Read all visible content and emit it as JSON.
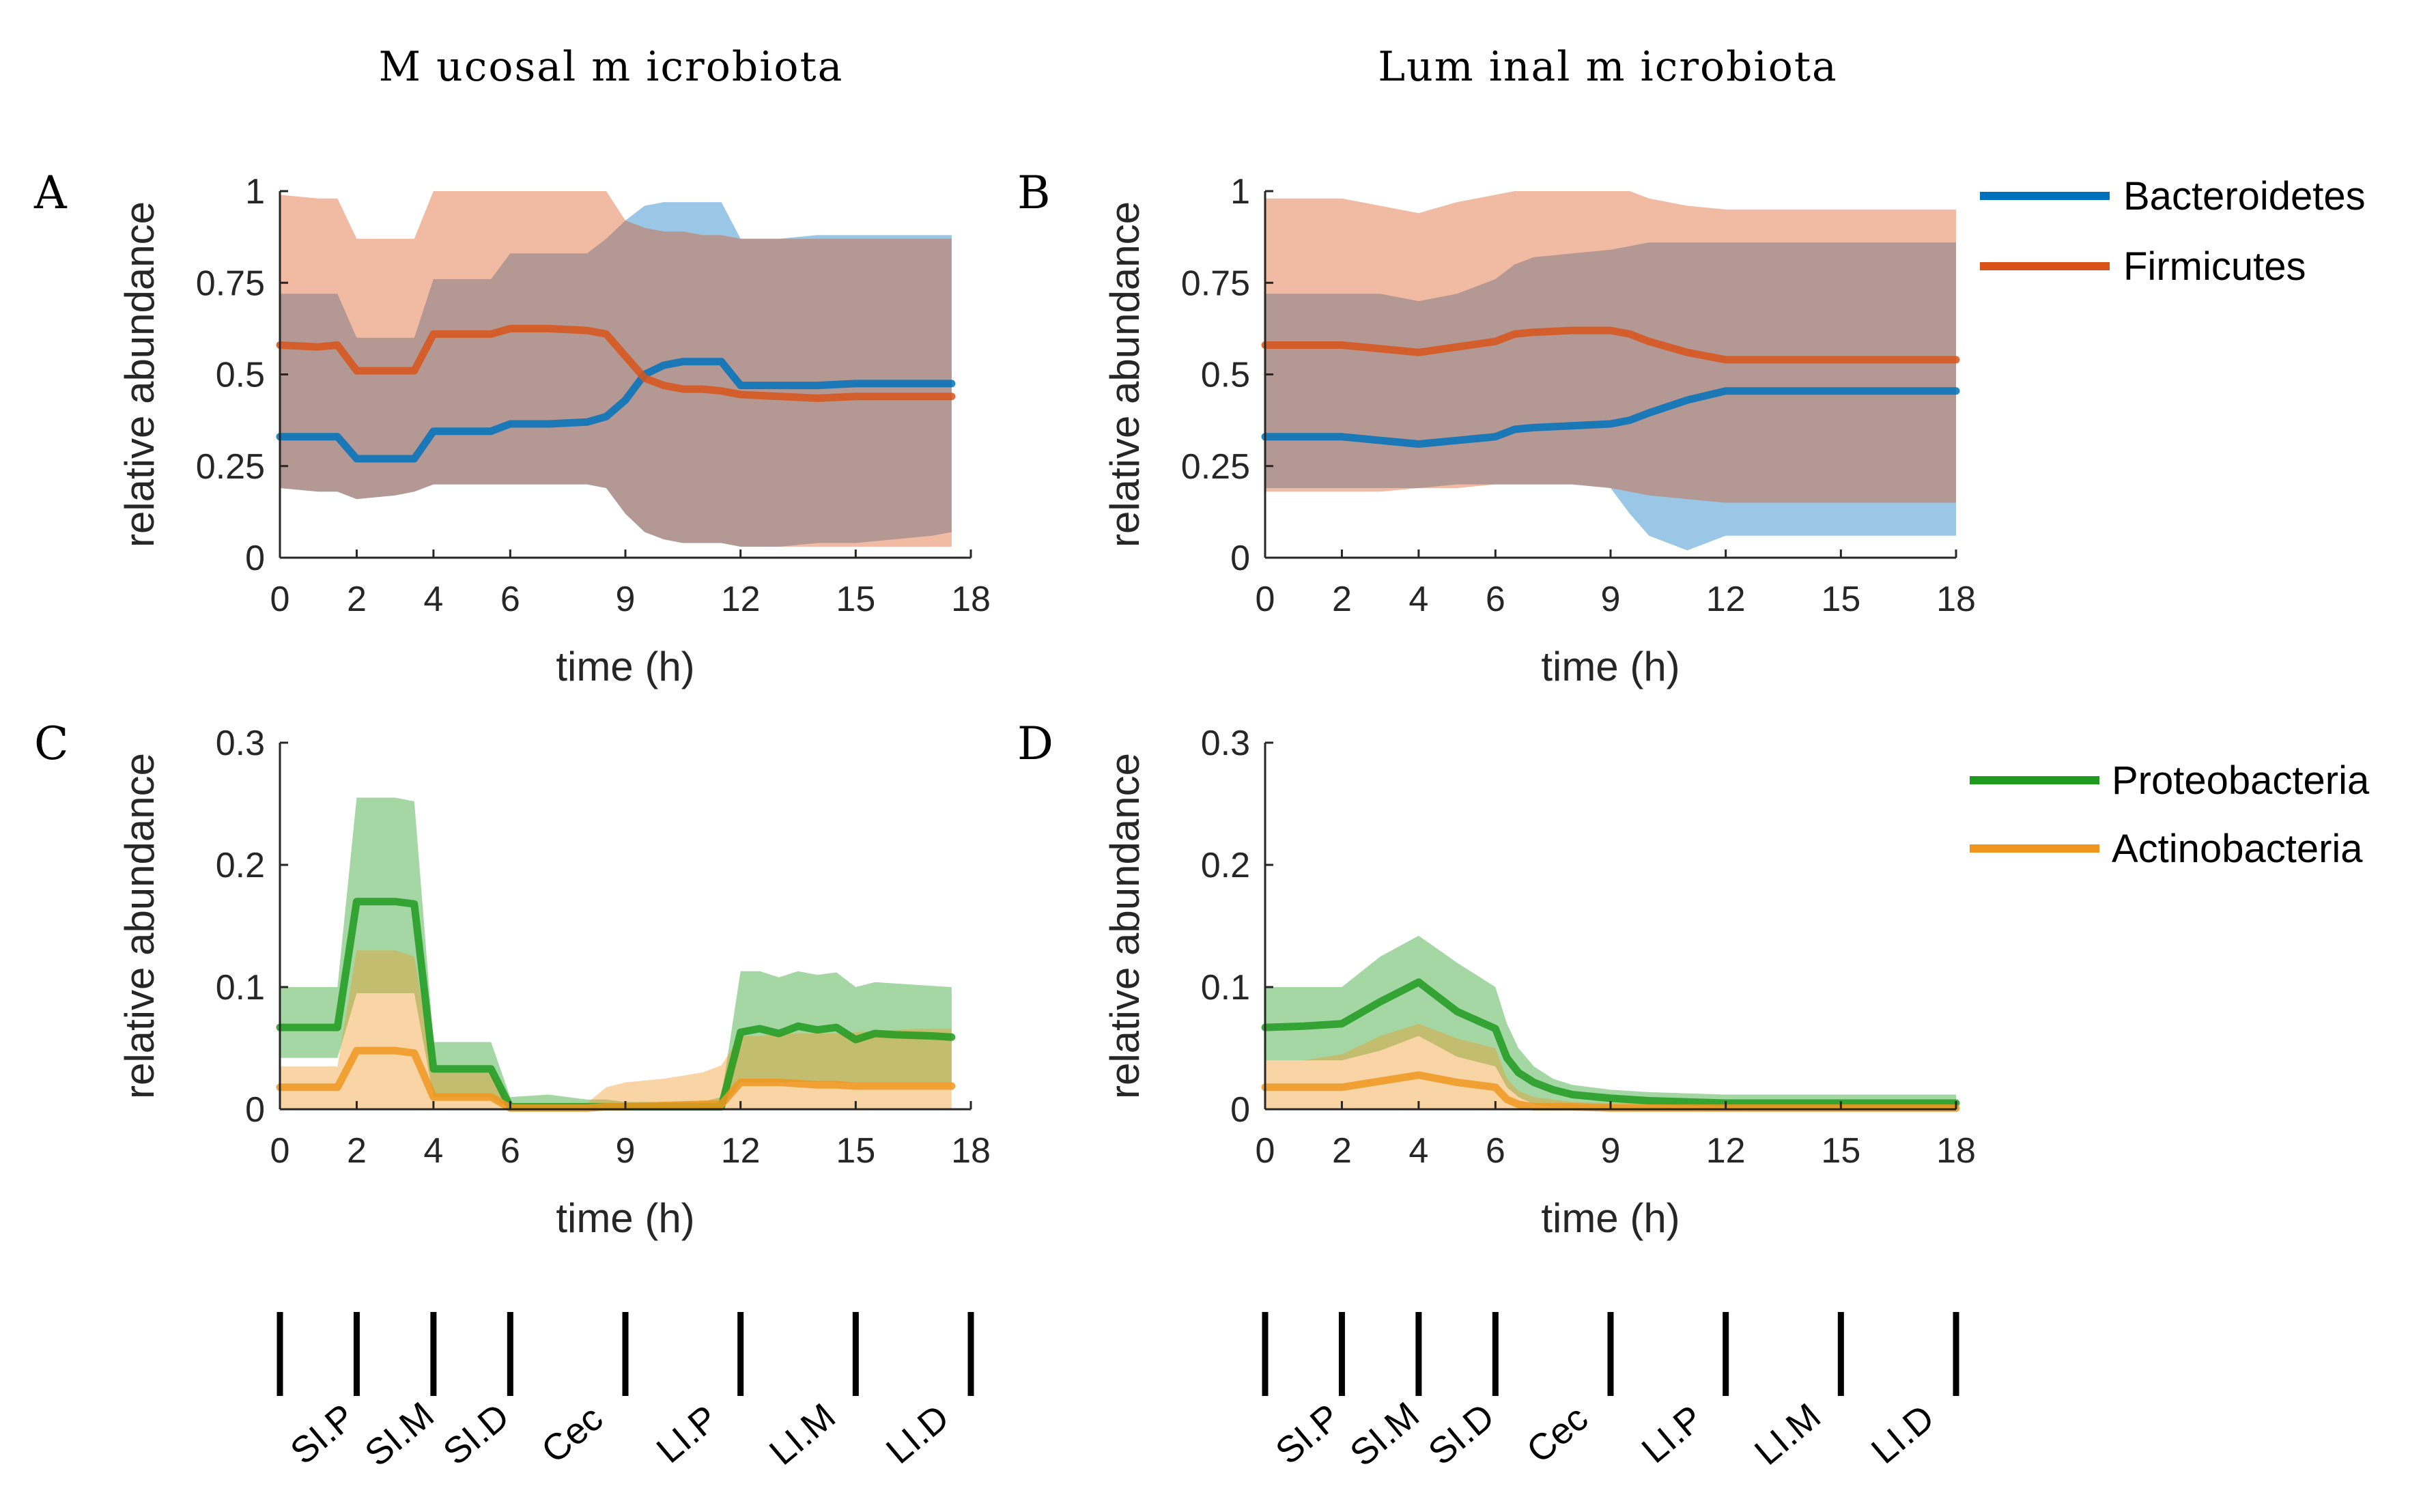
{
  "titles": {
    "mucosal": "M ucosal m icrobiota",
    "luminal": "Lum inal m icrobiota"
  },
  "legend_top": [
    {
      "label": "Bacteroidetes",
      "color": "#0072BD"
    },
    {
      "label": "Firmicutes",
      "color": "#D95319"
    }
  ],
  "legend_bottom": [
    {
      "label": "Proteobacteria",
      "color": "#1E9A1E"
    },
    {
      "label": "Actinobacteria",
      "color": "#F0961E"
    }
  ],
  "segments": {
    "boundaries_h": [
      0,
      2,
      4,
      6,
      9,
      12,
      15,
      18
    ],
    "labels": [
      "SI.P",
      "SI.M",
      "SI.D",
      "Cec",
      "LI.P",
      "LI.M",
      "LI.D"
    ]
  },
  "chart_data": [
    {
      "panel": "A",
      "type": "area",
      "xlabel": "time (h)",
      "ylabel": "relative abundance",
      "xlim": [
        0,
        18
      ],
      "ylim": [
        0,
        1
      ],
      "xticks": [
        "0",
        "2",
        "4",
        "6",
        "9",
        "12",
        "15",
        "18"
      ],
      "yticks": [
        "0",
        "0.25",
        "0.5",
        "0.75",
        "1"
      ],
      "series": [
        {
          "name": "Bacteroidetes",
          "color": "#0072BD",
          "x": [
            0,
            1,
            1.5,
            2,
            3,
            3.5,
            4,
            5,
            5.5,
            6,
            7,
            8,
            8.5,
            9,
            9.5,
            10,
            10.5,
            11,
            11.5,
            12,
            13,
            14,
            15,
            16,
            17,
            17.5
          ],
          "mean": [
            0.33,
            0.33,
            0.33,
            0.27,
            0.27,
            0.27,
            0.345,
            0.345,
            0.345,
            0.365,
            0.365,
            0.37,
            0.385,
            0.43,
            0.5,
            0.525,
            0.535,
            0.535,
            0.535,
            0.47,
            0.47,
            0.47,
            0.475,
            0.475,
            0.475,
            0.475
          ],
          "lower": [
            0.19,
            0.18,
            0.18,
            0.16,
            0.17,
            0.18,
            0.2,
            0.2,
            0.2,
            0.2,
            0.2,
            0.2,
            0.19,
            0.12,
            0.07,
            0.05,
            0.04,
            0.04,
            0.04,
            0.03,
            0.03,
            0.04,
            0.04,
            0.05,
            0.06,
            0.07
          ],
          "upper": [
            0.72,
            0.72,
            0.72,
            0.6,
            0.6,
            0.6,
            0.76,
            0.76,
            0.76,
            0.83,
            0.83,
            0.83,
            0.87,
            0.92,
            0.96,
            0.97,
            0.97,
            0.97,
            0.97,
            0.87,
            0.87,
            0.88,
            0.88,
            0.88,
            0.88,
            0.88
          ]
        },
        {
          "name": "Firmicutes",
          "color": "#D95319",
          "x": [
            0,
            1,
            1.5,
            2,
            3,
            3.5,
            4,
            5,
            5.5,
            6,
            7,
            8,
            8.5,
            9,
            9.5,
            10,
            10.5,
            11,
            11.5,
            12,
            13,
            14,
            15,
            16,
            17,
            17.5
          ],
          "mean": [
            0.58,
            0.575,
            0.58,
            0.51,
            0.51,
            0.51,
            0.61,
            0.61,
            0.61,
            0.625,
            0.625,
            0.62,
            0.61,
            0.55,
            0.49,
            0.47,
            0.46,
            0.46,
            0.455,
            0.445,
            0.44,
            0.435,
            0.44,
            0.44,
            0.44,
            0.44
          ],
          "lower": [
            0.19,
            0.18,
            0.18,
            0.16,
            0.17,
            0.18,
            0.2,
            0.2,
            0.2,
            0.2,
            0.2,
            0.2,
            0.19,
            0.12,
            0.07,
            0.05,
            0.04,
            0.04,
            0.04,
            0.03,
            0.03,
            0.03,
            0.03,
            0.03,
            0.03,
            0.03
          ],
          "upper": [
            0.99,
            0.98,
            0.98,
            0.87,
            0.87,
            0.87,
            1.0,
            1.0,
            1.0,
            1.0,
            1.0,
            1.0,
            1.0,
            0.92,
            0.9,
            0.89,
            0.89,
            0.88,
            0.88,
            0.87,
            0.87,
            0.87,
            0.87,
            0.87,
            0.87,
            0.87
          ]
        }
      ]
    },
    {
      "panel": "B",
      "type": "area",
      "xlabel": "time (h)",
      "ylabel": "relative abundance",
      "xlim": [
        0,
        18
      ],
      "ylim": [
        0,
        1
      ],
      "xticks": [
        "0",
        "2",
        "4",
        "6",
        "9",
        "12",
        "15",
        "18"
      ],
      "yticks": [
        "0",
        "0.25",
        "0.5",
        "0.75",
        "1"
      ],
      "series": [
        {
          "name": "Bacteroidetes",
          "color": "#0072BD",
          "x": [
            0,
            2,
            3,
            4,
            5,
            6,
            6.5,
            7,
            8,
            9,
            9.5,
            10,
            11,
            12,
            13,
            14,
            15,
            16,
            17,
            18
          ],
          "mean": [
            0.33,
            0.33,
            0.32,
            0.31,
            0.32,
            0.33,
            0.35,
            0.355,
            0.36,
            0.365,
            0.375,
            0.395,
            0.43,
            0.455,
            0.455,
            0.455,
            0.455,
            0.455,
            0.455,
            0.455
          ],
          "lower": [
            0.19,
            0.19,
            0.19,
            0.19,
            0.2,
            0.2,
            0.2,
            0.2,
            0.2,
            0.19,
            0.12,
            0.06,
            0.02,
            0.06,
            0.06,
            0.06,
            0.06,
            0.06,
            0.06,
            0.06
          ],
          "upper": [
            0.72,
            0.72,
            0.72,
            0.7,
            0.72,
            0.76,
            0.8,
            0.82,
            0.83,
            0.84,
            0.85,
            0.86,
            0.86,
            0.86,
            0.86,
            0.86,
            0.86,
            0.86,
            0.86,
            0.86
          ]
        },
        {
          "name": "Firmicutes",
          "color": "#D95319",
          "x": [
            0,
            2,
            3,
            4,
            5,
            6,
            6.5,
            7,
            8,
            9,
            9.5,
            10,
            11,
            12,
            13,
            14,
            15,
            16,
            17,
            18
          ],
          "mean": [
            0.58,
            0.58,
            0.57,
            0.56,
            0.575,
            0.59,
            0.61,
            0.615,
            0.62,
            0.62,
            0.61,
            0.59,
            0.56,
            0.54,
            0.54,
            0.54,
            0.54,
            0.54,
            0.54,
            0.54
          ],
          "lower": [
            0.18,
            0.18,
            0.18,
            0.19,
            0.19,
            0.2,
            0.2,
            0.2,
            0.2,
            0.19,
            0.18,
            0.17,
            0.16,
            0.15,
            0.15,
            0.15,
            0.15,
            0.15,
            0.15,
            0.15
          ],
          "upper": [
            0.98,
            0.98,
            0.96,
            0.94,
            0.97,
            0.99,
            1.0,
            1.0,
            1.0,
            1.0,
            1.0,
            0.98,
            0.96,
            0.95,
            0.95,
            0.95,
            0.95,
            0.95,
            0.95,
            0.95
          ]
        }
      ]
    },
    {
      "panel": "C",
      "type": "area",
      "xlabel": "time (h)",
      "ylabel": "relative abundance",
      "xlim": [
        0,
        18
      ],
      "ylim": [
        0,
        0.3
      ],
      "xticks": [
        "0",
        "2",
        "4",
        "6",
        "9",
        "12",
        "15",
        "18"
      ],
      "yticks": [
        "0",
        "0.1",
        "0.2",
        "0.3"
      ],
      "series": [
        {
          "name": "Proteobacteria",
          "color": "#1E9A1E",
          "x": [
            0,
            1,
            1.5,
            2,
            3,
            3.5,
            4,
            5,
            5.5,
            6,
            7,
            8,
            8.5,
            9,
            10,
            11,
            11.5,
            12,
            12.5,
            13,
            13.5,
            14,
            14.5,
            15,
            15.5,
            16,
            17,
            17.5
          ],
          "mean": [
            0.067,
            0.067,
            0.067,
            0.17,
            0.17,
            0.168,
            0.033,
            0.033,
            0.033,
            0.002,
            0.002,
            0.002,
            0.002,
            0.002,
            0.002,
            0.002,
            0.002,
            0.063,
            0.066,
            0.062,
            0.068,
            0.065,
            0.067,
            0.057,
            0.062,
            0.061,
            0.06,
            0.059
          ],
          "lower": [
            0.042,
            0.042,
            0.042,
            0.095,
            0.095,
            0.095,
            0.01,
            0.01,
            0.01,
            0.0,
            0.0,
            0.0,
            0.0,
            0.0,
            0.0,
            0.0,
            0.0,
            0.022,
            0.022,
            0.022,
            0.022,
            0.022,
            0.022,
            0.022,
            0.022,
            0.022,
            0.022,
            0.022
          ],
          "upper": [
            0.1,
            0.1,
            0.1,
            0.255,
            0.255,
            0.252,
            0.055,
            0.055,
            0.055,
            0.01,
            0.012,
            0.008,
            0.008,
            0.006,
            0.006,
            0.006,
            0.01,
            0.113,
            0.113,
            0.108,
            0.113,
            0.11,
            0.112,
            0.1,
            0.104,
            0.103,
            0.101,
            0.1
          ]
        },
        {
          "name": "Actinobacteria",
          "color": "#F0961E",
          "x": [
            0,
            1,
            1.5,
            2,
            3,
            3.5,
            4,
            5,
            5.5,
            6,
            7,
            8,
            8.5,
            9,
            10,
            11,
            11.5,
            12,
            12.5,
            13,
            13.5,
            14,
            14.5,
            15,
            15.5,
            16,
            17,
            17.5
          ],
          "mean": [
            0.018,
            0.018,
            0.018,
            0.048,
            0.048,
            0.046,
            0.01,
            0.01,
            0.01,
            0.001,
            0.001,
            0.001,
            0.002,
            0.002,
            0.003,
            0.004,
            0.004,
            0.022,
            0.022,
            0.022,
            0.021,
            0.02,
            0.02,
            0.019,
            0.019,
            0.019,
            0.019,
            0.019
          ],
          "lower": [
            0.0,
            0.0,
            0.0,
            0.0,
            0.0,
            0.0,
            0.0,
            0.0,
            0.0,
            0.0,
            0.0,
            0.0,
            0.0,
            0.0,
            0.0,
            0.0,
            0.0,
            0.0,
            0.0,
            0.0,
            0.0,
            0.0,
            0.0,
            0.0,
            0.0,
            0.0,
            0.0,
            0.0
          ],
          "upper": [
            0.035,
            0.035,
            0.035,
            0.13,
            0.13,
            0.125,
            0.03,
            0.03,
            0.03,
            0.005,
            0.005,
            0.005,
            0.018,
            0.022,
            0.025,
            0.03,
            0.036,
            0.06,
            0.06,
            0.062,
            0.062,
            0.062,
            0.062,
            0.063,
            0.064,
            0.065,
            0.066,
            0.066
          ]
        }
      ]
    },
    {
      "panel": "D",
      "type": "area",
      "xlabel": "time (h)",
      "ylabel": "relative abundance",
      "xlim": [
        0,
        18
      ],
      "ylim": [
        0,
        0.3
      ],
      "xticks": [
        "0",
        "2",
        "4",
        "6",
        "9",
        "12",
        "15",
        "18"
      ],
      "yticks": [
        "0",
        "0.1",
        "0.2",
        "0.3"
      ],
      "series": [
        {
          "name": "Proteobacteria",
          "color": "#1E9A1E",
          "x": [
            0,
            1,
            2,
            3,
            4,
            5,
            6,
            6.3,
            6.6,
            7,
            7.5,
            8,
            9,
            10,
            12,
            14,
            16,
            18
          ],
          "mean": [
            0.067,
            0.068,
            0.07,
            0.088,
            0.104,
            0.08,
            0.066,
            0.042,
            0.03,
            0.022,
            0.016,
            0.012,
            0.009,
            0.007,
            0.005,
            0.005,
            0.005,
            0.005
          ],
          "lower": [
            0.04,
            0.04,
            0.04,
            0.048,
            0.06,
            0.043,
            0.035,
            0.018,
            0.01,
            0.004,
            0.002,
            0.001,
            0.0,
            0.0,
            0.0,
            0.0,
            0.0,
            0.0
          ],
          "upper": [
            0.1,
            0.1,
            0.1,
            0.125,
            0.142,
            0.12,
            0.1,
            0.07,
            0.05,
            0.035,
            0.025,
            0.02,
            0.016,
            0.014,
            0.012,
            0.012,
            0.012,
            0.012
          ]
        },
        {
          "name": "Actinobacteria",
          "color": "#F0961E",
          "x": [
            0,
            1,
            2,
            3,
            4,
            5,
            6,
            6.3,
            6.6,
            7,
            7.5,
            8,
            9,
            10,
            12,
            14,
            16,
            18
          ],
          "mean": [
            0.018,
            0.018,
            0.018,
            0.023,
            0.028,
            0.022,
            0.018,
            0.008,
            0.004,
            0.002,
            0.002,
            0.002,
            0.001,
            0.001,
            0.001,
            0.001,
            0.001,
            0.001
          ],
          "lower": [
            0.0,
            0.0,
            0.0,
            0.0,
            0.0,
            0.0,
            0.0,
            0.0,
            0.0,
            0.0,
            0.0,
            0.0,
            0.0,
            0.0,
            0.0,
            0.0,
            0.0,
            0.0
          ],
          "upper": [
            0.04,
            0.04,
            0.045,
            0.06,
            0.07,
            0.058,
            0.05,
            0.025,
            0.015,
            0.01,
            0.008,
            0.006,
            0.005,
            0.005,
            0.005,
            0.005,
            0.005,
            0.005
          ]
        }
      ]
    }
  ]
}
